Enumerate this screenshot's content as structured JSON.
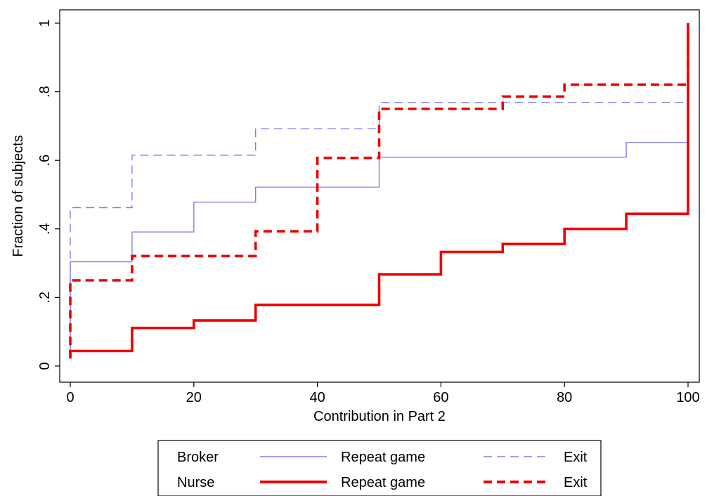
{
  "chart_data": {
    "type": "line",
    "step": true,
    "xlabel": "Contribution in Part 2",
    "ylabel": "Fraction of subjects",
    "xlim": [
      0,
      100
    ],
    "ylim": [
      0,
      1
    ],
    "x_ticks": [
      0,
      20,
      40,
      60,
      80,
      100
    ],
    "x_tick_labels": [
      "0",
      "20",
      "40",
      "60",
      "80",
      "100"
    ],
    "y_ticks": [
      0,
      0.2,
      0.4,
      0.6,
      0.8,
      1
    ],
    "y_tick_labels": [
      "0",
      ".2",
      ".4",
      ".6",
      ".8",
      "1"
    ],
    "grid": false,
    "legend_position": "bottom",
    "series": [
      {
        "group": "Broker",
        "name": "Repeat game",
        "color": "#8080f0",
        "style": "solid-thin",
        "points": [
          [
            0,
            0.04
          ],
          [
            0,
            0.304
          ],
          [
            10,
            0.304
          ],
          [
            10,
            0.391
          ],
          [
            20,
            0.391
          ],
          [
            20,
            0.478
          ],
          [
            30,
            0.478
          ],
          [
            30,
            0.522
          ],
          [
            50,
            0.522
          ],
          [
            50,
            0.609
          ],
          [
            90,
            0.609
          ],
          [
            90,
            0.652
          ],
          [
            100,
            0.652
          ],
          [
            100,
            1.0
          ]
        ]
      },
      {
        "group": "Broker",
        "name": "Exit",
        "color": "#8080f0",
        "style": "dashed-thin",
        "points": [
          [
            0,
            0.04
          ],
          [
            0,
            0.462
          ],
          [
            10,
            0.462
          ],
          [
            10,
            0.615
          ],
          [
            30,
            0.615
          ],
          [
            30,
            0.692
          ],
          [
            50,
            0.692
          ],
          [
            50,
            0.769
          ],
          [
            100,
            0.769
          ],
          [
            100,
            1.0
          ]
        ]
      },
      {
        "group": "Nurse",
        "name": "Repeat game",
        "color": "#ee0000",
        "style": "solid-thick",
        "points": [
          [
            0,
            0.022
          ],
          [
            0,
            0.044
          ],
          [
            10,
            0.044
          ],
          [
            10,
            0.111
          ],
          [
            20,
            0.111
          ],
          [
            20,
            0.133
          ],
          [
            30,
            0.133
          ],
          [
            30,
            0.178
          ],
          [
            50,
            0.178
          ],
          [
            50,
            0.267
          ],
          [
            60,
            0.267
          ],
          [
            60,
            0.333
          ],
          [
            70,
            0.333
          ],
          [
            70,
            0.356
          ],
          [
            80,
            0.356
          ],
          [
            80,
            0.4
          ],
          [
            90,
            0.4
          ],
          [
            90,
            0.444
          ],
          [
            100,
            0.444
          ],
          [
            100,
            1.0
          ]
        ]
      },
      {
        "group": "Nurse",
        "name": "Exit",
        "color": "#ee0000",
        "style": "dashed-thick",
        "points": [
          [
            0,
            0.022
          ],
          [
            0,
            0.25
          ],
          [
            10,
            0.25
          ],
          [
            10,
            0.321
          ],
          [
            30,
            0.321
          ],
          [
            30,
            0.393
          ],
          [
            40,
            0.393
          ],
          [
            40,
            0.607
          ],
          [
            50,
            0.607
          ],
          [
            50,
            0.75
          ],
          [
            70,
            0.75
          ],
          [
            70,
            0.786
          ],
          [
            80,
            0.786
          ],
          [
            80,
            0.821
          ],
          [
            100,
            0.821
          ],
          [
            100,
            1.0
          ]
        ]
      }
    ]
  },
  "legend": {
    "rows": [
      {
        "group": "Broker",
        "col1": "Repeat game",
        "col2": "Exit"
      },
      {
        "group": "Nurse",
        "col1": "Repeat game",
        "col2": "Exit"
      }
    ]
  }
}
